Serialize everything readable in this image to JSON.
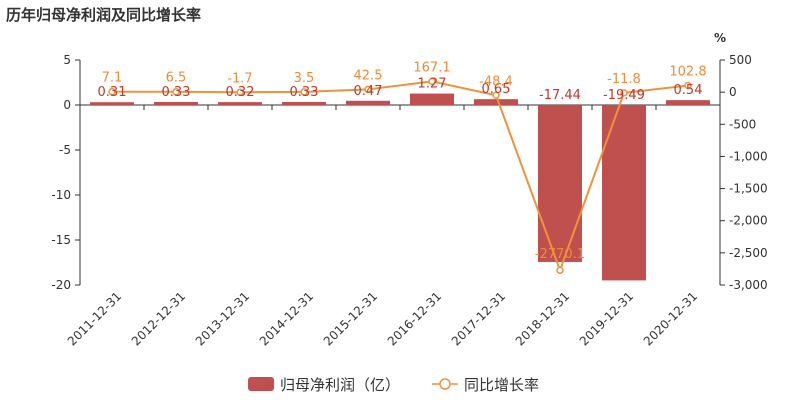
{
  "title": "历年归母净利润及同比增长率",
  "colors": {
    "bar": "#c0504d",
    "line": "#f0923c",
    "axis": "#333333"
  },
  "chart_data": {
    "type": "bar",
    "title": "历年归母净利润及同比增长率",
    "categories": [
      "2011-12-31",
      "2012-12-31",
      "2013-12-31",
      "2014-12-31",
      "2015-12-31",
      "2016-12-31",
      "2017-12-31",
      "2018-12-31",
      "2019-12-31",
      "2020-12-31"
    ],
    "series": [
      {
        "name": "归母净利润（亿）",
        "type": "bar",
        "axis": "left",
        "values": [
          0.31,
          0.33,
          0.32,
          0.33,
          0.47,
          1.27,
          0.65,
          -17.44,
          -19.49,
          0.54
        ],
        "labels": [
          "0.31",
          "0.33",
          "0.32",
          "0.33",
          "0.47",
          "1.27",
          "0.65",
          "-17.44",
          "-19.49",
          "0.54"
        ]
      },
      {
        "name": "同比增长率",
        "type": "line",
        "axis": "right",
        "values": [
          7.1,
          6.5,
          -1.7,
          3.5,
          42.5,
          167.1,
          -48.4,
          -2770.1,
          -11.8,
          102.8
        ],
        "labels": [
          "7.1",
          "6.5",
          "-1.7",
          "3.5",
          "42.5",
          "167.1",
          "-48.4",
          "-2770.1",
          "-11.8",
          "102.8"
        ]
      }
    ],
    "y_left": {
      "ylim": [
        -20,
        5
      ],
      "ticks": [
        "5",
        "0",
        "-5",
        "-10",
        "-15",
        "-20"
      ],
      "tick_values": [
        5,
        0,
        -5,
        -10,
        -15,
        -20
      ]
    },
    "y_right": {
      "unit": "%",
      "ylim": [
        -3000,
        500
      ],
      "ticks": [
        "500",
        "0",
        "-500",
        "-1,000",
        "-1,500",
        "-2,000",
        "-2,500",
        "-3,000"
      ],
      "tick_values": [
        500,
        0,
        -500,
        -1000,
        -1500,
        -2000,
        -2500,
        -3000
      ]
    },
    "grid": false,
    "legend": "bottom-center"
  }
}
